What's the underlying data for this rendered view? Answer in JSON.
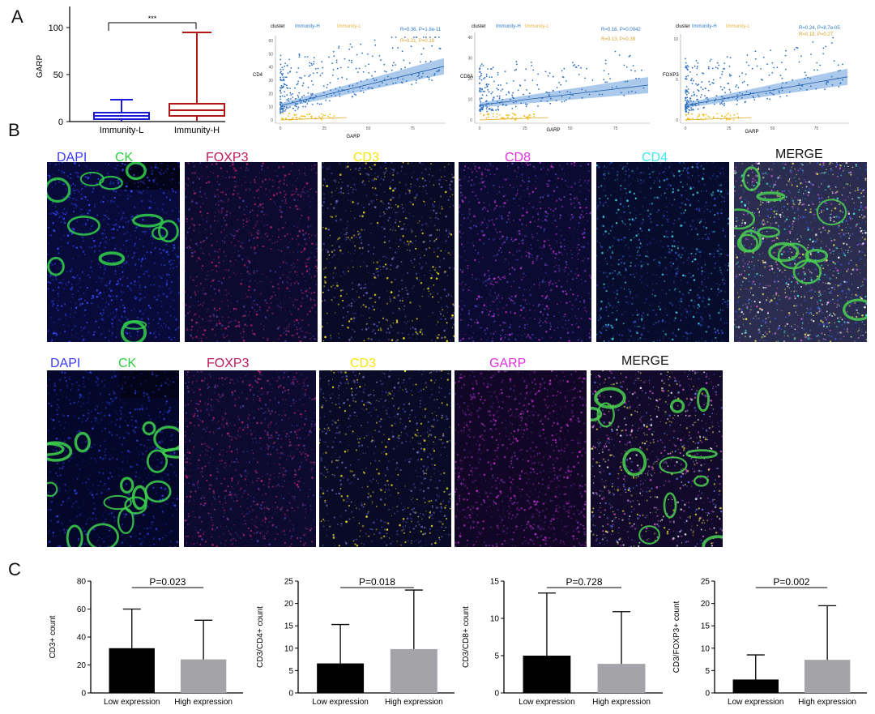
{
  "panels": {
    "a": "A",
    "b": "B",
    "c": "C"
  },
  "panel_a": {
    "boxplot": {
      "ylabel": "GARP",
      "yticks": [
        "0",
        "50",
        "100"
      ],
      "categories": [
        "Immunity-L",
        "Immunity-H"
      ],
      "significance": "***"
    },
    "scatter1": {
      "legend_title": "cluster",
      "legend_items": [
        "Immunity-H",
        "Immunity-L"
      ],
      "stat_h": "R=0.36, P=1.8e-11",
      "stat_l": "R=0.21, P=0.18",
      "ylabel": "CD4",
      "xlabel": "GARP",
      "yticks": [
        "0",
        "10",
        "20",
        "30",
        "40",
        "50",
        "60"
      ],
      "xticks": [
        "0",
        "25",
        "50",
        "75"
      ]
    },
    "scatter2": {
      "legend_title": "cluster",
      "legend_items": [
        "Immunity-H",
        "Immunity-L"
      ],
      "stat_h": "R=0.16, P=0.0042",
      "stat_l": "R=0.13, P=0.39",
      "ylabel": "CD8A",
      "xlabel": "GARP",
      "yticks": [
        "0",
        "10",
        "20",
        "30",
        "40"
      ],
      "xticks": [
        "0",
        "25",
        "50",
        "75"
      ]
    },
    "scatter3": {
      "legend_title": "cluster",
      "legend_items": [
        "Immunity-H",
        "Immunity-L"
      ],
      "stat_h": "R=0.24, P=8.7e-05",
      "stat_l": "R=0.18, P=0.27",
      "ylabel": "FOXP3",
      "xlabel": "GARP",
      "yticks": [
        "0",
        "5",
        "10"
      ],
      "xticks": [
        "0",
        "25",
        "50",
        "75"
      ]
    }
  },
  "panel_b": {
    "row1": [
      {
        "name": "DAPI",
        "color": "#3a3aff"
      },
      {
        "name": "CK",
        "color": "#2ecc40"
      },
      {
        "name": "FOXP3",
        "color": "#c0185a"
      },
      {
        "name": "CD3",
        "color": "#f5e50a"
      },
      {
        "name": "CD8",
        "color": "#e030e0"
      },
      {
        "name": "CD4",
        "color": "#40e8f0"
      },
      {
        "name": "MERGE",
        "color": "#111111"
      }
    ],
    "row2": [
      {
        "name": "DAPI",
        "color": "#3a3aff"
      },
      {
        "name": "CK",
        "color": "#2ecc40"
      },
      {
        "name": "FOXP3",
        "color": "#c0185a"
      },
      {
        "name": "CD3",
        "color": "#f5e50a"
      },
      {
        "name": "GARP",
        "color": "#e030e0"
      },
      {
        "name": "MERGE",
        "color": "#111111"
      }
    ]
  },
  "panel_c": {
    "charts": [
      {
        "ylabel": "CD3+ count",
        "ylim": [
          0,
          80
        ],
        "yticks": [
          "0",
          "20",
          "40",
          "60",
          "80"
        ],
        "pvalue": "P=0.023",
        "categories": [
          "Low expression",
          "High expression"
        ],
        "values": [
          32,
          24
        ],
        "errors": [
          60,
          52
        ]
      },
      {
        "ylabel": "CD3/CD4+ count",
        "ylim": [
          0,
          25
        ],
        "yticks": [
          "0",
          "5",
          "10",
          "15",
          "20",
          "25"
        ],
        "pvalue": "P=0.018",
        "categories": [
          "Low expression",
          "High expression"
        ],
        "values": [
          6.6,
          9.8
        ],
        "errors": [
          15.3,
          23
        ]
      },
      {
        "ylabel": "CD3/CD8+ count",
        "ylim": [
          0,
          15
        ],
        "yticks": [
          "0",
          "5",
          "10",
          "15"
        ],
        "pvalue": "P=0.728",
        "categories": [
          "Low expression",
          "High expression"
        ],
        "values": [
          5.0,
          3.9
        ],
        "errors": [
          13.4,
          10.9
        ]
      },
      {
        "ylabel": "CD3/FOXP3+ count",
        "ylim": [
          0,
          25
        ],
        "yticks": [
          "0",
          "5",
          "10",
          "15",
          "20",
          "25"
        ],
        "pvalue": "P=0.002",
        "categories": [
          "Low expression",
          "High expression"
        ],
        "values": [
          3.0,
          7.4
        ],
        "errors": [
          8.5,
          19.5
        ]
      }
    ],
    "bar_colors": [
      "#000000",
      "#a3a3a8"
    ]
  },
  "chart_data": [
    {
      "type": "box",
      "ylabel": "GARP",
      "ylim": [
        0,
        110
      ],
      "categories": [
        "Immunity-L",
        "Immunity-H"
      ],
      "series": [
        {
          "name": "Immunity-L",
          "min": 0,
          "q1": 3,
          "median": 6,
          "q3": 10,
          "max": 23
        },
        {
          "name": "Immunity-H",
          "min": 0,
          "q1": 6,
          "median": 12,
          "q3": 19,
          "max": 95
        }
      ]
    },
    {
      "type": "scatter",
      "xlabel": "GARP",
      "ylabel": "CD4",
      "xlim": [
        0,
        95
      ],
      "ylim": [
        0,
        65
      ]
    },
    {
      "type": "scatter",
      "xlabel": "GARP",
      "ylabel": "CD8A",
      "xlim": [
        0,
        95
      ],
      "ylim": [
        0,
        45
      ]
    },
    {
      "type": "scatter",
      "xlabel": "GARP",
      "ylabel": "FOXP3",
      "xlim": [
        0,
        95
      ],
      "ylim": [
        0,
        14
      ]
    },
    {
      "type": "bar",
      "ylabel": "CD3+ count",
      "ylim": [
        0,
        80
      ],
      "categories": [
        "Low expression",
        "High expression"
      ],
      "values": [
        32,
        24
      ],
      "error_upper": [
        60,
        52
      ]
    },
    {
      "type": "bar",
      "ylabel": "CD3/CD4+ count",
      "ylim": [
        0,
        25
      ],
      "categories": [
        "Low expression",
        "High expression"
      ],
      "values": [
        6.6,
        9.8
      ],
      "error_upper": [
        15.3,
        23
      ]
    },
    {
      "type": "bar",
      "ylabel": "CD3/CD8+ count",
      "ylim": [
        0,
        15
      ],
      "categories": [
        "Low expression",
        "High expression"
      ],
      "values": [
        5.0,
        3.9
      ],
      "error_upper": [
        13.4,
        10.9
      ]
    },
    {
      "type": "bar",
      "ylabel": "CD3/FOXP3+ count",
      "ylim": [
        0,
        25
      ],
      "categories": [
        "Low expression",
        "High expression"
      ],
      "values": [
        3.0,
        7.4
      ],
      "error_upper": [
        8.5,
        19.5
      ]
    }
  ]
}
